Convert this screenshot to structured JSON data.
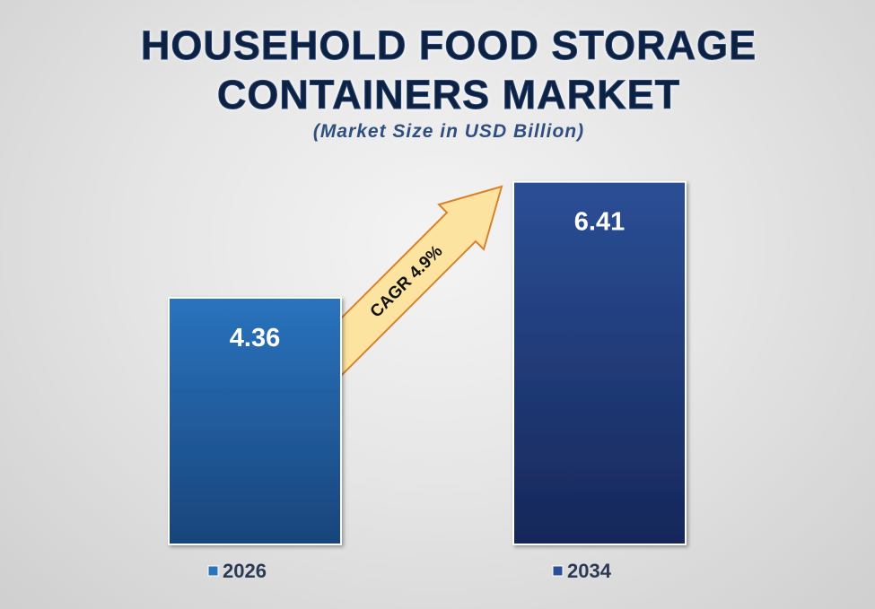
{
  "chart_data": {
    "type": "bar",
    "title_lines": [
      "HOUSEHOLD FOOD STORAGE",
      "CONTAINERS MARKET"
    ],
    "subtitle": "(Market Size in USD Billion)",
    "categories": [
      "2026",
      "2034"
    ],
    "values": [
      4.36,
      6.41
    ],
    "value_labels": [
      "4.36",
      "6.41"
    ],
    "annotation": "CAGR  4.9%",
    "ylim": [
      0,
      6.5
    ],
    "grid": false,
    "legend_placement": "bottom",
    "colors": {
      "bar_2026_top": "#2a73be",
      "bar_2026_bottom": "#18447a",
      "bar_2034_top": "#2b4f96",
      "bar_2034_bottom": "#16275a",
      "arrow_fill": "#fde3a0",
      "arrow_stroke": "#d9822b",
      "title": "#10213f",
      "subtitle": "#2f4f80"
    }
  }
}
